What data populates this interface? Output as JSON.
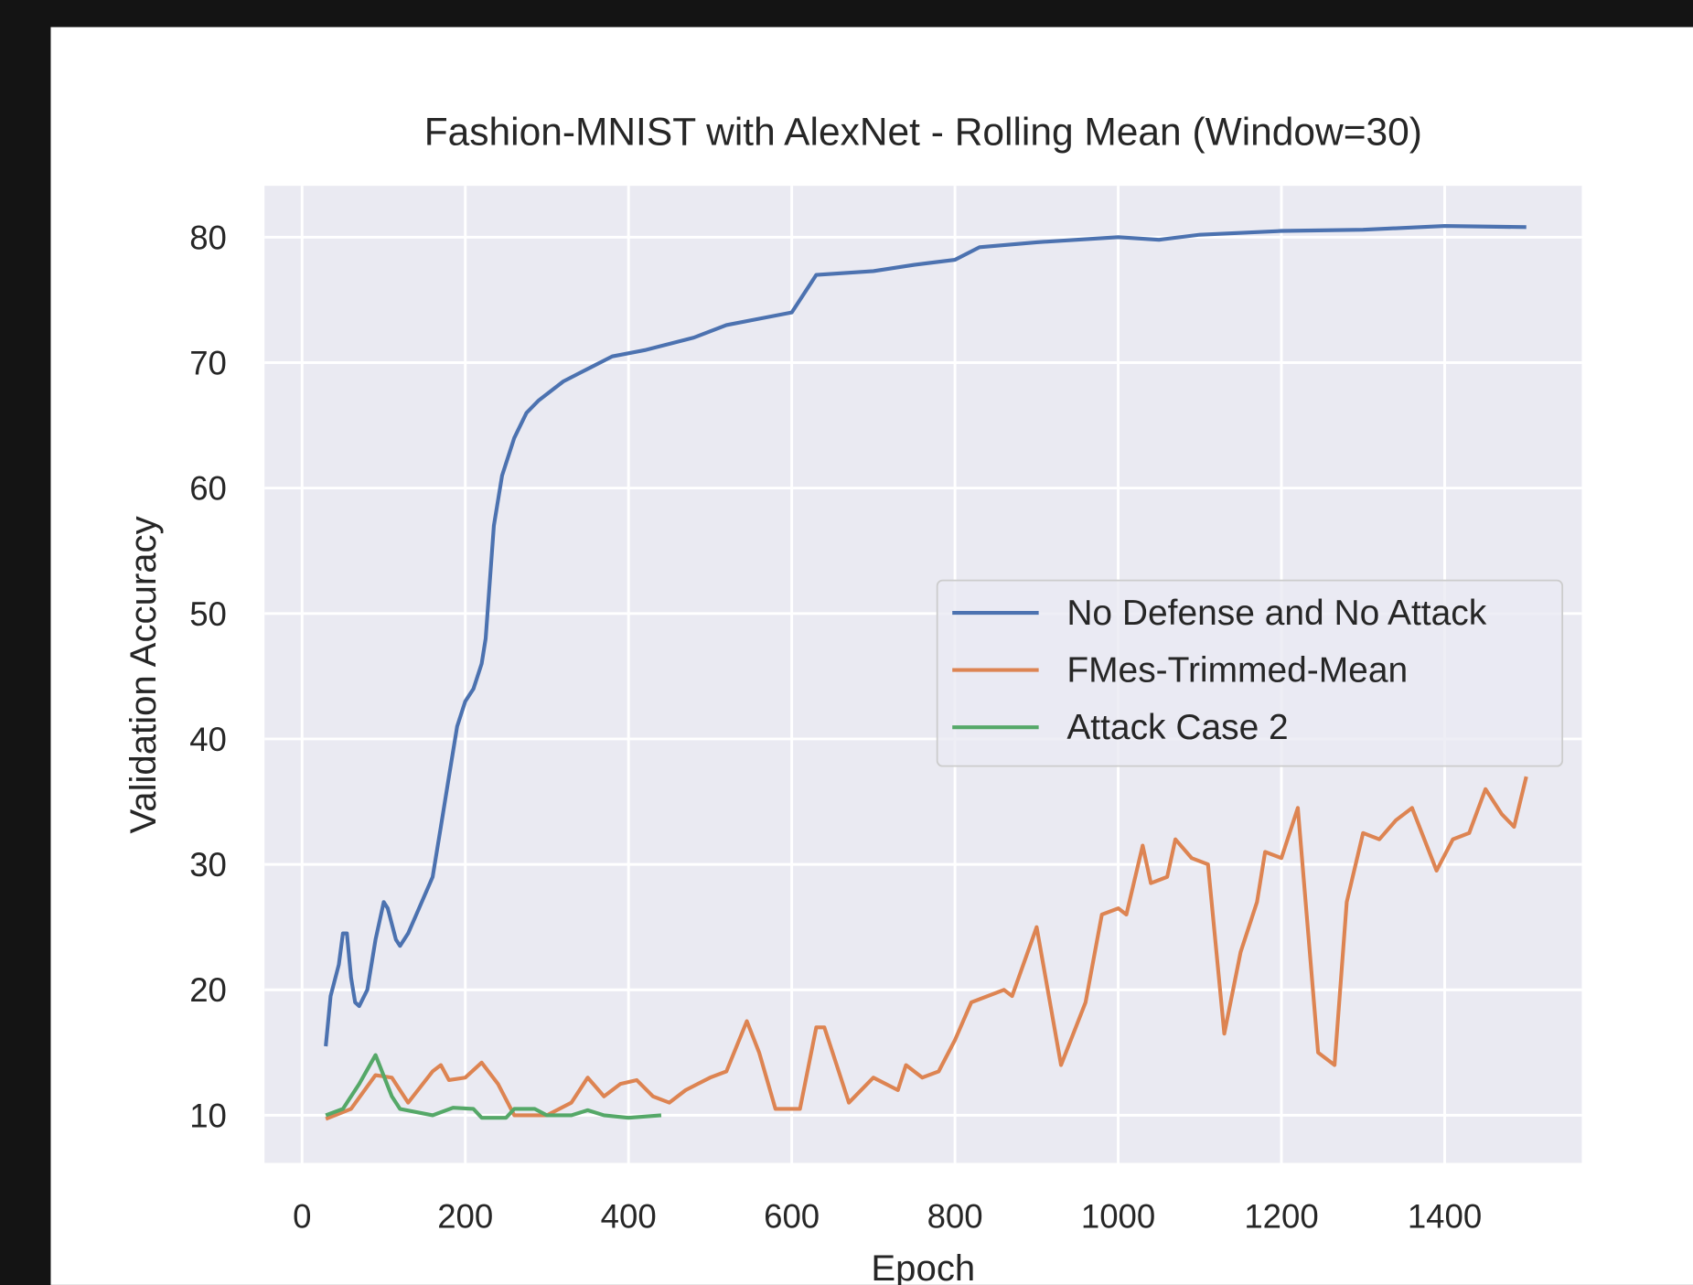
{
  "chart_data": {
    "type": "line",
    "title": "Fashion-MNIST with AlexNet - Rolling Mean (Window=30)",
    "xlabel": "Epoch",
    "ylabel": "Validation Accuracy",
    "xlim": [
      -46,
      1568
    ],
    "ylim": [
      6.2,
      84.1
    ],
    "xticks": [
      0,
      200,
      400,
      600,
      800,
      1000,
      1200,
      1400
    ],
    "yticks": [
      10,
      20,
      30,
      40,
      50,
      60,
      70,
      80
    ],
    "grid": true,
    "legend": "center right",
    "series": [
      {
        "name": "No Defense and No Attack",
        "color": "#4c72b0",
        "x": [
          29,
          35,
          45,
          50,
          55,
          60,
          65,
          70,
          80,
          90,
          100,
          105,
          115,
          120,
          130,
          140,
          160,
          170,
          180,
          190,
          200,
          210,
          220,
          225,
          235,
          245,
          260,
          275,
          290,
          320,
          350,
          380,
          420,
          450,
          480,
          520,
          560,
          600,
          630,
          700,
          750,
          800,
          830,
          900,
          1000,
          1050,
          1100,
          1200,
          1300,
          1400,
          1500
        ],
        "values": [
          15.5,
          19.5,
          22,
          24.5,
          24.5,
          21,
          19,
          18.7,
          20,
          24,
          27,
          26.5,
          24,
          23.5,
          24.5,
          26,
          29,
          33,
          37,
          41,
          43,
          44,
          46,
          48,
          57,
          61,
          64,
          66,
          67,
          68.5,
          69.5,
          70.5,
          71,
          71.5,
          72,
          73,
          73.5,
          74,
          77,
          77.3,
          77.8,
          78.2,
          79.2,
          79.6,
          80,
          79.8,
          80.2,
          80.5,
          80.6,
          80.9,
          80.8
        ]
      },
      {
        "name": "FMes-Trimmed-Mean",
        "color": "#dd8452",
        "x": [
          29,
          60,
          90,
          110,
          130,
          160,
          170,
          180,
          200,
          220,
          240,
          260,
          300,
          330,
          350,
          370,
          390,
          410,
          430,
          450,
          470,
          500,
          520,
          545,
          560,
          580,
          610,
          630,
          640,
          660,
          670,
          700,
          730,
          740,
          760,
          780,
          800,
          820,
          860,
          870,
          900,
          930,
          960,
          980,
          1000,
          1010,
          1030,
          1040,
          1060,
          1070,
          1090,
          1110,
          1130,
          1150,
          1170,
          1180,
          1200,
          1220,
          1245,
          1265,
          1280,
          1300,
          1320,
          1340,
          1360,
          1390,
          1410,
          1430,
          1450,
          1470,
          1485,
          1500
        ],
        "values": [
          9.7,
          10.5,
          13.2,
          13,
          11,
          13.5,
          14,
          12.8,
          13,
          14.2,
          12.5,
          10,
          10,
          11,
          13,
          11.5,
          12.5,
          12.8,
          11.5,
          11,
          12,
          13,
          13.5,
          17.5,
          15,
          10.5,
          10.5,
          17,
          17,
          13,
          11,
          13,
          12,
          14,
          13,
          13.5,
          16,
          19,
          20,
          19.5,
          25,
          14,
          19,
          26,
          26.5,
          26,
          31.5,
          28.5,
          29,
          32,
          30.5,
          30,
          16.5,
          23,
          27,
          31,
          30.5,
          34.5,
          15,
          14,
          27,
          32.5,
          32,
          33.5,
          34.5,
          29.5,
          32,
          32.5,
          36,
          34,
          33,
          37
        ]
      },
      {
        "name": "Attack Case 2",
        "color": "#55a868",
        "x": [
          29,
          50,
          70,
          90,
          110,
          120,
          160,
          185,
          210,
          220,
          250,
          260,
          285,
          300,
          330,
          350,
          370,
          400,
          440
        ],
        "values": [
          10,
          10.5,
          12.5,
          14.8,
          11.5,
          10.5,
          10,
          10.6,
          10.5,
          9.8,
          9.8,
          10.5,
          10.5,
          10,
          10,
          10.4,
          10,
          9.8,
          10
        ]
      }
    ]
  }
}
